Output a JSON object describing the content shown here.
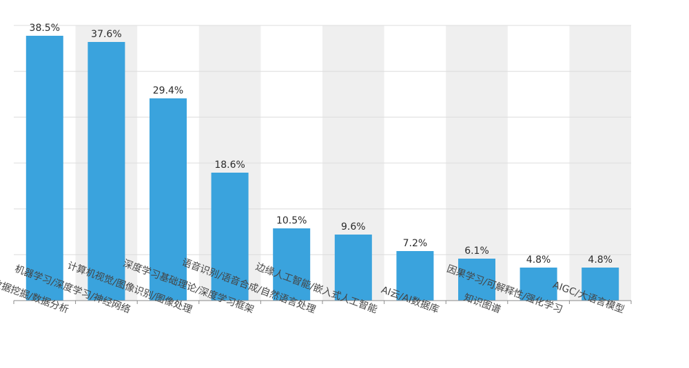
{
  "chart_data": {
    "type": "bar",
    "categories": [
      "数据科学/数据挖掘/数据分析",
      "机器学习/深度学习/神经网络",
      "计算机视觉/图像识别/图像处理",
      "深度学习基础理论/深度学习框架",
      "语音识别/语音合成/自然语言处理",
      "边缘人工智能/嵌入式人工智能",
      "AI云/AI数据库",
      "知识图谱",
      "因果学习/可解释性/强化学习",
      "AIGC/大语言模型"
    ],
    "values": [
      38.5,
      37.6,
      29.4,
      18.6,
      10.5,
      9.6,
      7.2,
      6.1,
      4.8,
      4.8
    ],
    "data_labels": [
      "38.5%",
      "37.6%",
      "29.4%",
      "18.6%",
      "10.5%",
      "9.6%",
      "7.2%",
      "6.1%",
      "4.8%",
      "4.8%"
    ],
    "title": "",
    "xlabel": "",
    "ylabel": "",
    "ylim": [
      0,
      40
    ],
    "y_gridlines": [
      0,
      6.67,
      13.33,
      20,
      26.67,
      33.33,
      40
    ],
    "grid": true,
    "alternating_bands": true,
    "legend": "none",
    "colors": {
      "bar": "#3aa3dd",
      "band": "#efefef",
      "grid": "#dcdcdc",
      "axis": "#8a8a8a"
    }
  }
}
